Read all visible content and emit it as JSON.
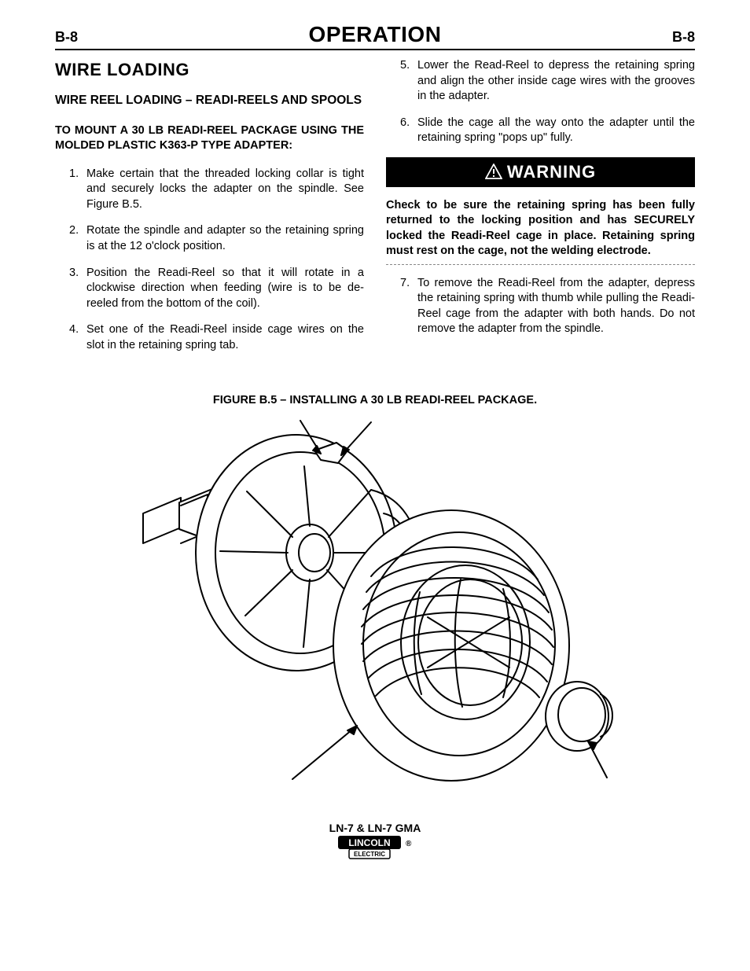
{
  "header": {
    "page_left": "B-8",
    "title": "OPERATION",
    "page_right": "B-8"
  },
  "left_col": {
    "h1": "WIRE LOADING",
    "h2": "WIRE REEL LOADING – READI-REELS AND SPOOLS",
    "h3": "TO MOUNT A 30 LB READI-REEL PACKAGE USING THE MOLDED PLASTIC K363-P TYPE ADAPTER:",
    "steps": [
      {
        "n": "1.",
        "t": "Make certain that the threaded locking collar is tight and securely locks the adapter on the spindle. See Figure B.5."
      },
      {
        "n": "2.",
        "t": "Rotate the spindle and adapter so the retaining spring is at the 12 o'clock position."
      },
      {
        "n": "3.",
        "t": "Position the Readi-Reel so that it will rotate in a clockwise direction when feeding (wire is to be de-reeled from the bottom of the coil)."
      },
      {
        "n": "4.",
        "t": "Set one of the Readi-Reel inside cage wires on the slot in the retaining spring tab."
      }
    ]
  },
  "right_col": {
    "steps_a": [
      {
        "n": "5.",
        "t": "Lower the Read-Reel to depress the retaining spring and align the other inside cage wires with the grooves in the adapter."
      },
      {
        "n": "6.",
        "t": "Slide the cage all the way onto the adapter until the retaining spring \"pops up\" fully."
      }
    ],
    "warning_label": "WARNING",
    "warning_body": "Check to be sure the retaining spring has been fully returned to the locking position and has SECURELY locked the Readi-Reel cage in place. Retaining spring must rest on the cage, not the welding electrode.",
    "steps_b": [
      {
        "n": "7.",
        "t": "To remove the Readi-Reel from the adapter, depress the retaining spring with thumb while pulling the Readi-Reel cage from the adapter with both hands. Do not remove the adapter from the spindle."
      }
    ]
  },
  "figure": {
    "caption": "FIGURE B.5 – INSTALLING A 30 LB READI-REEL PACKAGE.",
    "stroke": "#000000",
    "fill": "#ffffff"
  },
  "footer": {
    "model": "LN-7 & LN-7 GMA",
    "logo_top": "LINCOLN",
    "logo_bottom": "ELECTRIC"
  }
}
